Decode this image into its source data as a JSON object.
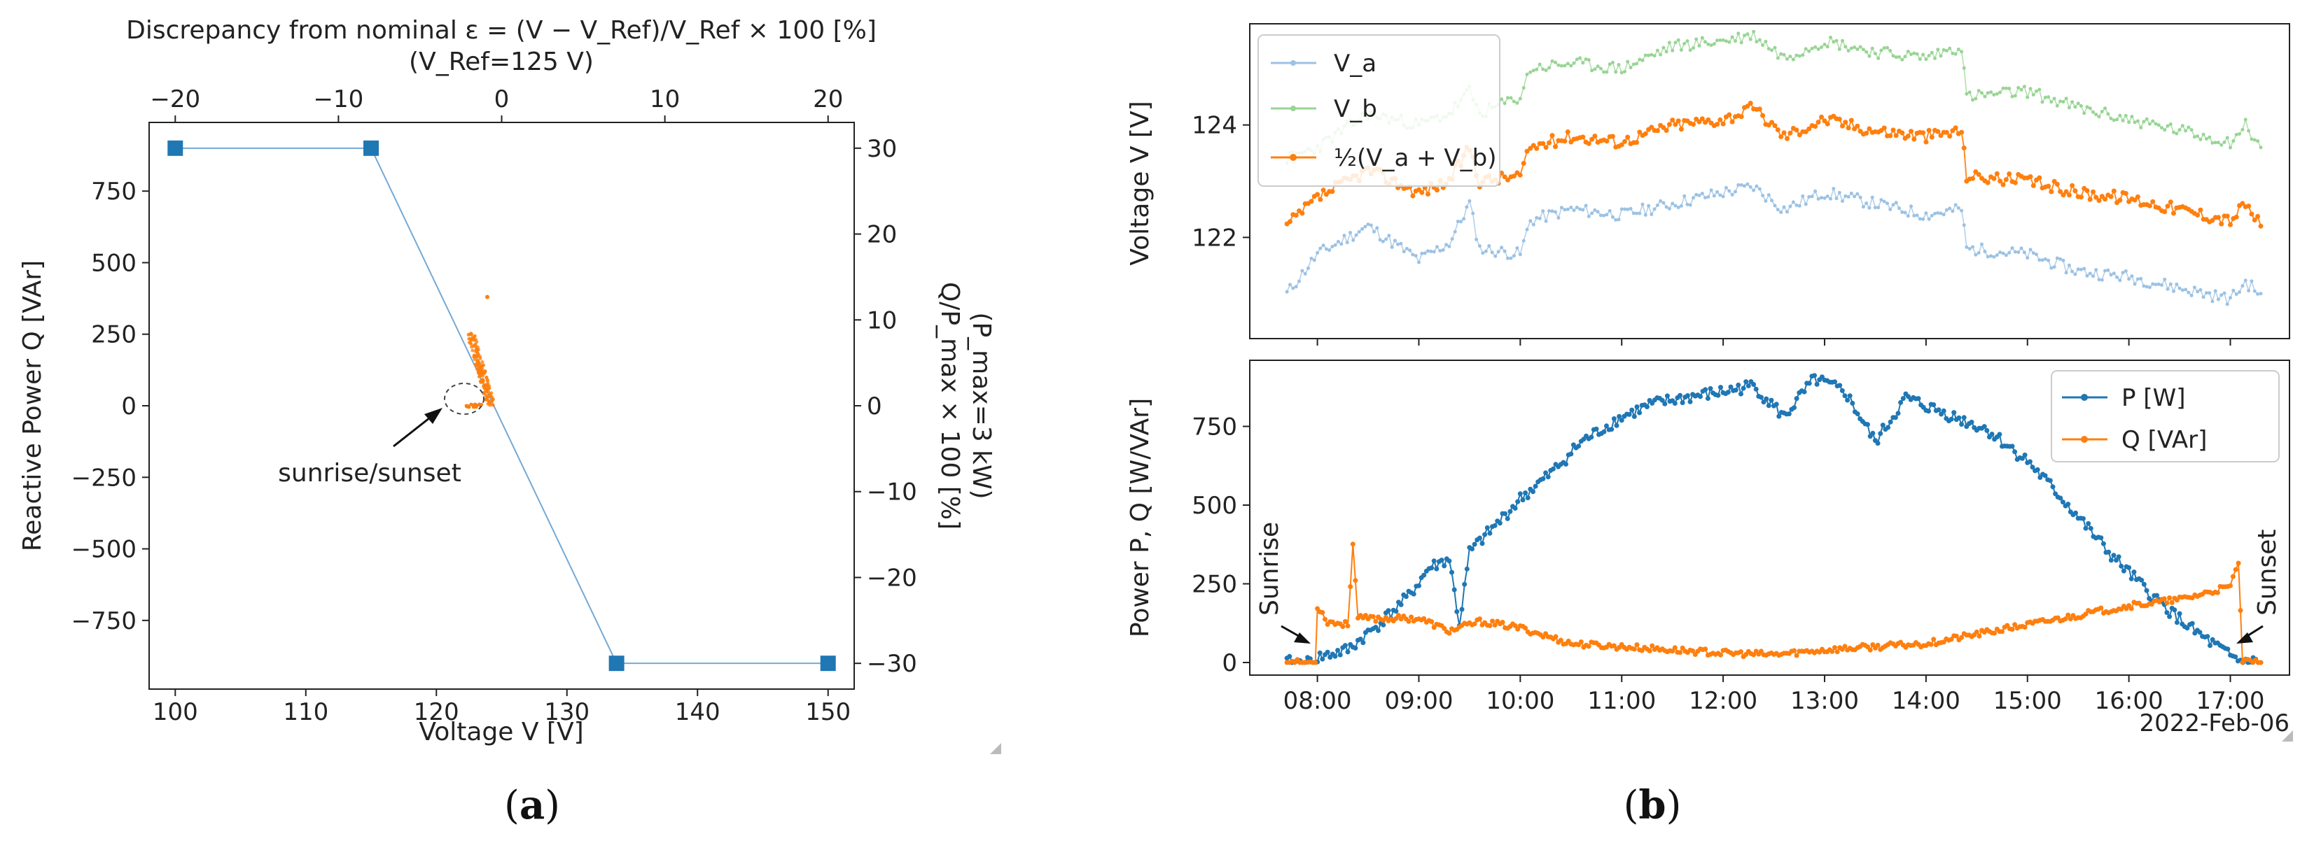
{
  "colors": {
    "p": "#1f77b4",
    "q": "#ff7f0e",
    "va": "#9cc2e4",
    "vb": "#98d594",
    "vavg": "#ff7f0e",
    "axis": "#222222"
  },
  "captions": {
    "left_open": "(",
    "left_letter": "a",
    "left_close": ")",
    "right_open": "(",
    "right_letter": "b",
    "right_close": ")"
  },
  "chart_data": [
    {
      "type": "line",
      "id": "a",
      "title": "Discrepancy from nominal ε = (V − V_Ref)/V_Ref × 100 [%]",
      "subtitle": "(V_Ref=125 V)",
      "xlabel": "Voltage V [V]",
      "ylabel": "Reactive Power Q [VAr]",
      "y2label": "Q/P_max × 100 [%]",
      "y2sublabel": "(P_max=3 kW)",
      "xlim": [
        98,
        152
      ],
      "ylim": [
        -990,
        990
      ],
      "xticks": [
        100,
        110,
        120,
        130,
        140,
        150
      ],
      "yticks": [
        -750,
        -500,
        -250,
        0,
        250,
        500,
        750
      ],
      "top_ticks": [
        -20,
        -10,
        0,
        10,
        20
      ],
      "right_ticks": [
        -30,
        -20,
        -10,
        0,
        10,
        20,
        30
      ],
      "grid": false,
      "series": [
        {
          "values": [
            [
              100,
              900
            ],
            [
              115,
              900
            ],
            [
              133.8,
              -900
            ],
            [
              150,
              -900
            ]
          ]
        }
      ],
      "scatter_cluster": {
        "v_center": 123.2,
        "q_range": [
          0,
          380
        ]
      },
      "annotation": "sunrise/sunset"
    },
    {
      "type": "line",
      "id": "b-top",
      "ylabel": "Voltage V [V]",
      "yticks": [
        122,
        124
      ],
      "ylim": [
        120.2,
        125.8
      ],
      "xlim": [
        "07:20",
        "17:35"
      ],
      "grid": false,
      "legend": "top-left",
      "series": [
        {
          "name": "V_a",
          "key": "va",
          "values": [
            [
              7.7,
              121.0
            ],
            [
              8.0,
              121.7
            ],
            [
              8.5,
              122.2
            ],
            [
              9.0,
              121.6
            ],
            [
              9.3,
              121.9
            ],
            [
              9.5,
              122.6
            ],
            [
              9.6,
              121.8
            ],
            [
              10.0,
              121.7
            ],
            [
              10.1,
              122.3
            ],
            [
              10.5,
              122.5
            ],
            [
              11.0,
              122.4
            ],
            [
              11.5,
              122.6
            ],
            [
              12.0,
              122.8
            ],
            [
              12.3,
              122.9
            ],
            [
              12.6,
              122.5
            ],
            [
              13.0,
              122.8
            ],
            [
              13.5,
              122.6
            ],
            [
              14.0,
              122.4
            ],
            [
              14.35,
              122.5
            ],
            [
              14.4,
              121.8
            ],
            [
              15.0,
              121.7
            ],
            [
              15.5,
              121.4
            ],
            [
              16.0,
              121.3
            ],
            [
              16.5,
              121.1
            ],
            [
              17.0,
              120.9
            ],
            [
              17.15,
              121.2
            ],
            [
              17.3,
              121.0
            ]
          ]
        },
        {
          "name": "V_b",
          "key": "vb",
          "values": [
            [
              7.7,
              123.4
            ],
            [
              8.0,
              123.6
            ],
            [
              8.5,
              124.2
            ],
            [
              9.0,
              124.0
            ],
            [
              9.3,
              124.2
            ],
            [
              9.5,
              124.6
            ],
            [
              9.6,
              124.2
            ],
            [
              10.0,
              124.5
            ],
            [
              10.1,
              125.0
            ],
            [
              10.5,
              125.1
            ],
            [
              11.0,
              125.0
            ],
            [
              11.5,
              125.4
            ],
            [
              12.0,
              125.5
            ],
            [
              12.3,
              125.6
            ],
            [
              12.6,
              125.2
            ],
            [
              13.0,
              125.5
            ],
            [
              13.5,
              125.3
            ],
            [
              14.0,
              125.2
            ],
            [
              14.35,
              125.4
            ],
            [
              14.4,
              124.5
            ],
            [
              15.0,
              124.6
            ],
            [
              15.5,
              124.3
            ],
            [
              16.0,
              124.1
            ],
            [
              16.5,
              123.9
            ],
            [
              17.0,
              123.7
            ],
            [
              17.15,
              124.0
            ],
            [
              17.3,
              123.6
            ]
          ]
        },
        {
          "name": "½(V_a + V_b)",
          "key": "vavg",
          "values": [
            [
              7.7,
              122.2
            ],
            [
              8.0,
              122.7
            ],
            [
              8.5,
              123.2
            ],
            [
              9.0,
              122.8
            ],
            [
              9.3,
              123.0
            ],
            [
              9.5,
              123.6
            ],
            [
              9.6,
              123.0
            ],
            [
              10.0,
              123.1
            ],
            [
              10.1,
              123.6
            ],
            [
              10.5,
              123.8
            ],
            [
              11.0,
              123.7
            ],
            [
              11.5,
              124.0
            ],
            [
              12.0,
              124.1
            ],
            [
              12.3,
              124.3
            ],
            [
              12.6,
              123.8
            ],
            [
              13.0,
              124.1
            ],
            [
              13.5,
              123.9
            ],
            [
              14.0,
              123.8
            ],
            [
              14.35,
              123.9
            ],
            [
              14.4,
              123.1
            ],
            [
              15.0,
              123.0
            ],
            [
              15.5,
              122.8
            ],
            [
              16.0,
              122.7
            ],
            [
              16.5,
              122.5
            ],
            [
              17.0,
              122.3
            ],
            [
              17.15,
              122.6
            ],
            [
              17.3,
              122.2
            ]
          ]
        }
      ]
    },
    {
      "type": "line",
      "id": "b-bottom",
      "ylabel": "Power P, Q [W/VAr]",
      "yticks": [
        0,
        250,
        500,
        750
      ],
      "ylim": [
        -40,
        960
      ],
      "xlim": [
        "07:20",
        "17:35"
      ],
      "xticks": [
        "08:00",
        "09:00",
        "10:00",
        "11:00",
        "12:00",
        "13:00",
        "14:00",
        "15:00",
        "16:00",
        "17:00"
      ],
      "date_label": "2022-Feb-06",
      "grid": false,
      "legend": "top-right",
      "series": [
        {
          "name": "P [W]",
          "key": "p",
          "values": [
            [
              7.7,
              0
            ],
            [
              7.98,
              0
            ],
            [
              8.0,
              15
            ],
            [
              8.3,
              40
            ],
            [
              8.6,
              120
            ],
            [
              8.9,
              210
            ],
            [
              9.1,
              300
            ],
            [
              9.3,
              330
            ],
            [
              9.4,
              120
            ],
            [
              9.5,
              350
            ],
            [
              9.8,
              450
            ],
            [
              10.0,
              520
            ],
            [
              10.3,
              600
            ],
            [
              10.6,
              700
            ],
            [
              11.0,
              780
            ],
            [
              11.3,
              820
            ],
            [
              11.6,
              840
            ],
            [
              12.0,
              860
            ],
            [
              12.3,
              880
            ],
            [
              12.6,
              780
            ],
            [
              12.9,
              900
            ],
            [
              13.2,
              860
            ],
            [
              13.5,
              700
            ],
            [
              13.8,
              840
            ],
            [
              14.2,
              790
            ],
            [
              14.6,
              740
            ],
            [
              15.0,
              640
            ],
            [
              15.4,
              500
            ],
            [
              15.8,
              350
            ],
            [
              16.2,
              220
            ],
            [
              16.6,
              110
            ],
            [
              17.0,
              20
            ],
            [
              17.1,
              5
            ],
            [
              17.3,
              0
            ]
          ]
        },
        {
          "name": "Q [VAr]",
          "key": "q",
          "values": [
            [
              7.7,
              0
            ],
            [
              7.98,
              0
            ],
            [
              8.0,
              180
            ],
            [
              8.1,
              130
            ],
            [
              8.3,
              120
            ],
            [
              8.35,
              380
            ],
            [
              8.4,
              140
            ],
            [
              9.0,
              140
            ],
            [
              9.3,
              100
            ],
            [
              9.6,
              130
            ],
            [
              10.0,
              110
            ],
            [
              10.5,
              60
            ],
            [
              11.0,
              50
            ],
            [
              11.5,
              40
            ],
            [
              12.0,
              30
            ],
            [
              12.5,
              25
            ],
            [
              13.0,
              40
            ],
            [
              13.5,
              50
            ],
            [
              14.0,
              60
            ],
            [
              14.5,
              90
            ],
            [
              15.0,
              120
            ],
            [
              15.5,
              150
            ],
            [
              16.0,
              180
            ],
            [
              16.5,
              200
            ],
            [
              17.0,
              240
            ],
            [
              17.08,
              320
            ],
            [
              17.12,
              0
            ],
            [
              17.3,
              0
            ]
          ]
        }
      ],
      "annotations": [
        "Sunrise",
        "Sunset"
      ]
    }
  ]
}
